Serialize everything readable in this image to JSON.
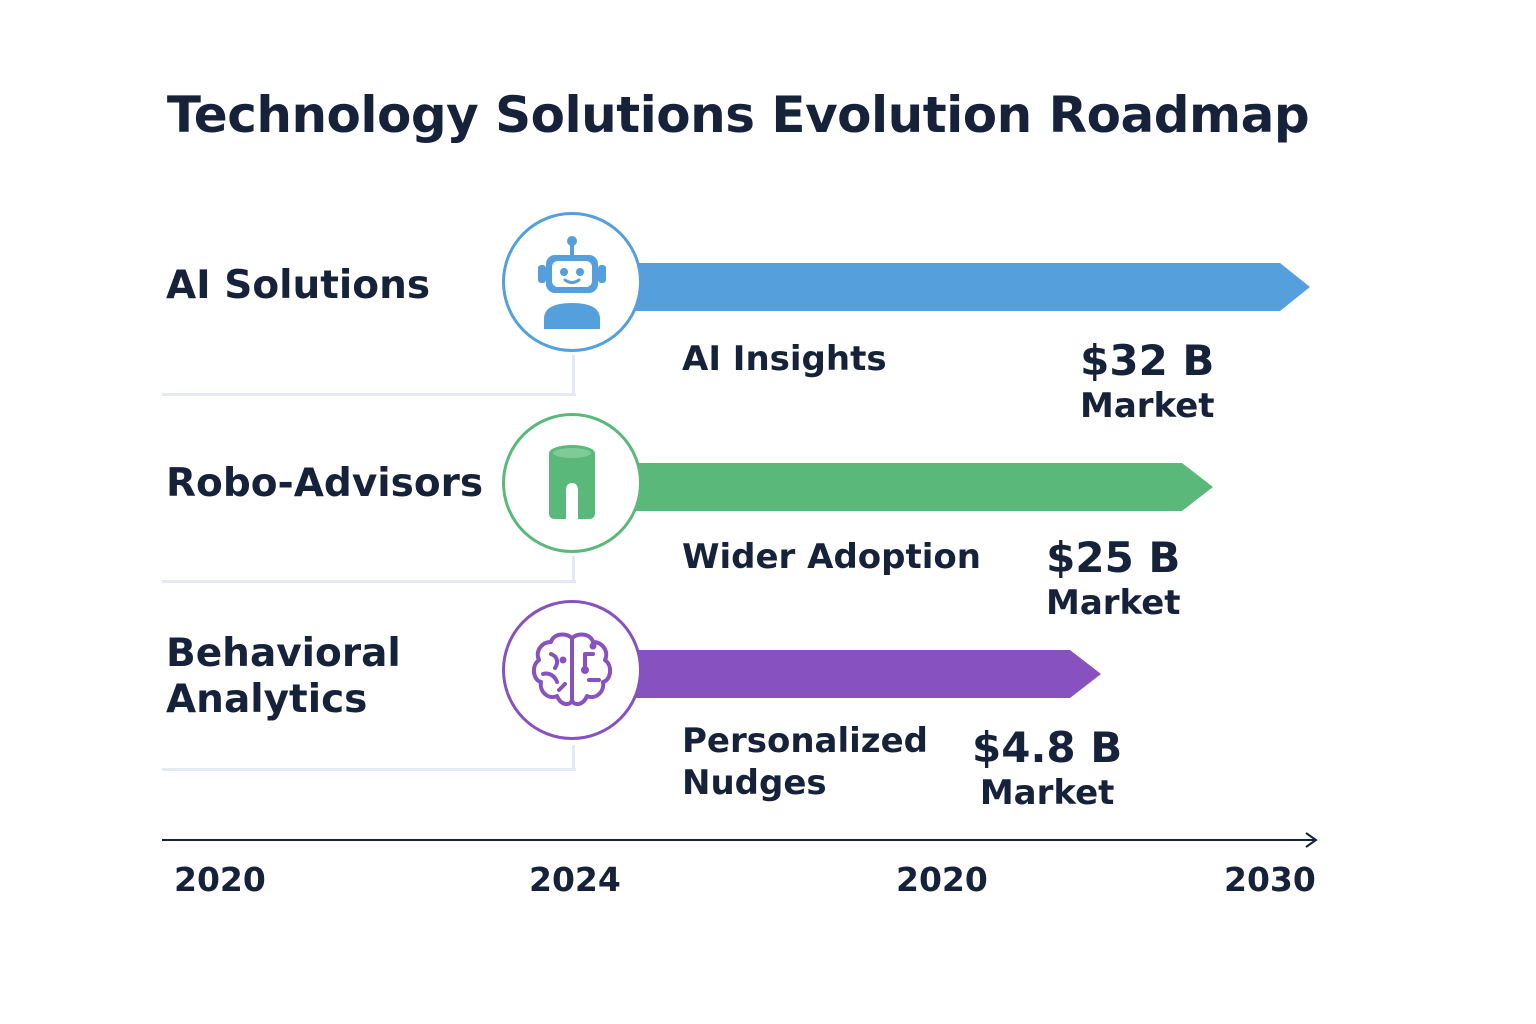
{
  "title": "Technology Solutions Evolution Roadmap",
  "colors": {
    "ai": "#559fdc",
    "robo": "#5ab97a",
    "behavioral": "#8752bf",
    "text": "#16213a",
    "divider": "#e4eaf1"
  },
  "rows": [
    {
      "label": "AI Solutions",
      "icon": "robot-icon",
      "milestone": "AI Insights",
      "market_value": "$32 B",
      "market_unit": "Market"
    },
    {
      "label": "Robo-Advisors",
      "icon": "cylinder-icon",
      "milestone": "Wider Adoption",
      "market_value": "$25 B",
      "market_unit": "Market"
    },
    {
      "label": "Behavioral Analytics",
      "label_lines": [
        "Behavioral",
        "Analytics"
      ],
      "icon": "brain-icon",
      "milestone": "Personalized Nudges",
      "milestone_lines": [
        "Personalized",
        "Nudges"
      ],
      "market_value": "$4.8 B",
      "market_unit": "Market"
    }
  ],
  "axis": {
    "ticks": [
      "2020",
      "2024",
      "2020",
      "2030"
    ]
  }
}
